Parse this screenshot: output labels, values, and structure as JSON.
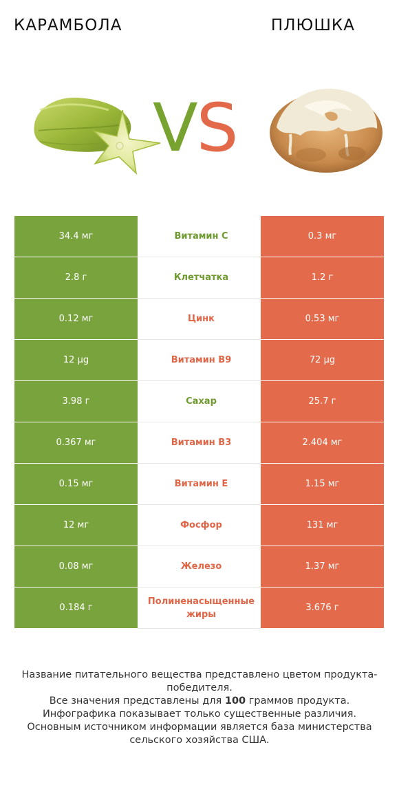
{
  "left_product": "КАРАМБОЛА",
  "right_product": "ПЛЮШКА",
  "vs": {
    "v": "V",
    "s": "S"
  },
  "colors": {
    "left": "#79a33d",
    "right": "#e36b4b"
  },
  "rows": [
    {
      "left": "34.4 мг",
      "nutrient": "Витамин C",
      "right": "0.3 мг",
      "winner": "left"
    },
    {
      "left": "2.8 г",
      "nutrient": "Клетчатка",
      "right": "1.2 г",
      "winner": "left"
    },
    {
      "left": "0.12 мг",
      "nutrient": "Цинк",
      "right": "0.53 мг",
      "winner": "right"
    },
    {
      "left": "12 µg",
      "nutrient": "Витамин B9",
      "right": "72 µg",
      "winner": "right"
    },
    {
      "left": "3.98 г",
      "nutrient": "Сахар",
      "right": "25.7 г",
      "winner": "left"
    },
    {
      "left": "0.367 мг",
      "nutrient": "Витамин B3",
      "right": "2.404 мг",
      "winner": "right"
    },
    {
      "left": "0.15 мг",
      "nutrient": "Витамин E",
      "right": "1.15 мг",
      "winner": "right"
    },
    {
      "left": "12 мг",
      "nutrient": "Фосфор",
      "right": "131 мг",
      "winner": "right"
    },
    {
      "left": "0.08 мг",
      "nutrient": "Железо",
      "right": "1.37 мг",
      "winner": "right"
    },
    {
      "left": "0.184 г",
      "nutrient": "Полиненасыщенные жиры",
      "right": "3.676 г",
      "winner": "right"
    }
  ],
  "footer": {
    "line1": "Название питательного вещества представлено цветом продукта-победителя.",
    "line2_a": "Все значения представлены для ",
    "line2_b": "100",
    "line2_c": " граммов продукта.",
    "line3": "Инфографика показывает только существенные различия.",
    "line4": "Основным источником информации является база министерства сельского хозяйства США."
  }
}
